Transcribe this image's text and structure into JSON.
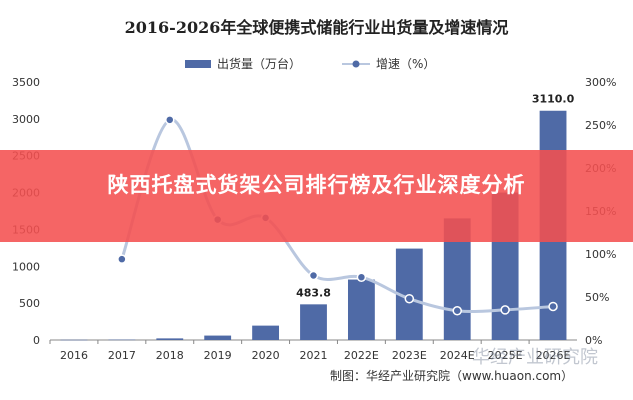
{
  "title": "2016-2026年全球便携式储能行业出货量及增速情况",
  "banner_text": "陕西托盘式货架公司排行榜及行业深度分析",
  "source": "制图：华经产业研究院（www.huaon.com）",
  "watermark": "华经产业研究院",
  "colors": {
    "bar": "#4f6aa6",
    "line": "#b9c7df",
    "marker": "#4f6aa6",
    "banner": "#f45050"
  },
  "chart_data": {
    "type": "bar",
    "categories": [
      "2016",
      "2017",
      "2018",
      "2019",
      "2020",
      "2021",
      "2022E",
      "2023E",
      "2024E",
      "2025E",
      "2026E"
    ],
    "series": [
      {
        "name": "出货量（万台）",
        "type": "bar",
        "axis": "left",
        "values": [
          3,
          5,
          22,
          60,
          195,
          483.8,
          820,
          1240,
          1650,
          2000,
          3110.0
        ]
      },
      {
        "name": "增速（%）",
        "type": "line",
        "axis": "right",
        "values": [
          null,
          94,
          256,
          140,
          142,
          75,
          73,
          48,
          34,
          35,
          39
        ]
      }
    ],
    "data_labels": [
      {
        "category": "2021",
        "text": "483.8"
      },
      {
        "category": "2026E",
        "text": "3110.0"
      }
    ],
    "ylim_left": [
      0,
      3500
    ],
    "yticks_left": [
      "0",
      "500",
      "1000",
      "1500",
      "2000",
      "2500",
      "3000",
      "3500"
    ],
    "ylim_right": [
      0,
      300
    ],
    "yticks_right": [
      "0%",
      "50%",
      "100%",
      "150%",
      "200%",
      "250%",
      "300%"
    ],
    "legend_position": "top",
    "grid": false
  }
}
